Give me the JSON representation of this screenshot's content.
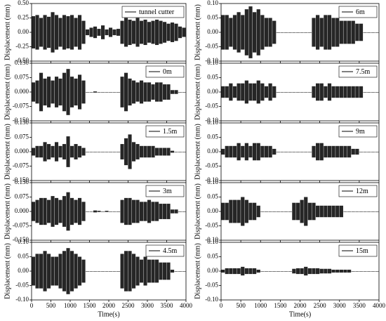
{
  "chart_data": [
    {
      "type": "envelope",
      "ylabel": "Displacement (mm)",
      "xlim": [
        0,
        4000
      ],
      "ylim": [
        -0.5,
        0.5
      ],
      "yticks": [
        {
          "value": 0.5,
          "label": "0.50"
        },
        0.25,
        {
          "value": 0,
          "label": "0.00"
        },
        -0.25,
        {
          "value": -0.5,
          "label": "-0.50"
        }
      ],
      "x": [
        0,
        100,
        200,
        300,
        400,
        500,
        600,
        700,
        800,
        900,
        1000,
        1100,
        1200,
        1300,
        1400,
        1500,
        1600,
        1700,
        1800,
        1900,
        2000,
        2100,
        2200,
        2300,
        2400,
        2500,
        2600,
        2700,
        2800,
        2900,
        3000,
        3100,
        3200,
        3300,
        3400,
        3500,
        3600,
        3700,
        3800,
        3900
      ],
      "series": [
        {
          "name": "tunnel cutter",
          "color": "#000000",
          "values": [
            0.28,
            0.3,
            0.25,
            0.3,
            0.27,
            0.35,
            0.3,
            0.25,
            0.3,
            0.28,
            0.3,
            0.25,
            0.3,
            0.2,
            0.05,
            0.08,
            0.1,
            0.06,
            0.12,
            0.05,
            0.08,
            0.05,
            0.06,
            0.2,
            0.25,
            0.22,
            0.2,
            0.25,
            0.2,
            0.22,
            0.18,
            0.2,
            0.22,
            0.2,
            0.18,
            0.15,
            0.17,
            0.15,
            0.1,
            0.08
          ]
        }
      ]
    },
    {
      "type": "envelope",
      "ylabel": "Displacement (mm)",
      "xlim": [
        0,
        4000
      ],
      "ylim": [
        -0.15,
        0.15
      ],
      "yticks": [
        {
          "value": 0.15,
          "label": "0.150"
        },
        0.075,
        {
          "value": 0,
          "label": "0.000"
        },
        -0.075,
        {
          "value": -0.15,
          "label": "-0.150"
        }
      ],
      "x": [
        0,
        100,
        200,
        300,
        400,
        500,
        600,
        700,
        800,
        900,
        1000,
        1100,
        1200,
        1300,
        1400,
        1500,
        1600,
        1700,
        1800,
        1900,
        2000,
        2100,
        2200,
        2300,
        2400,
        2500,
        2600,
        2700,
        2800,
        2900,
        3000,
        3100,
        3200,
        3300,
        3400,
        3500,
        3600,
        3700,
        3800,
        3900
      ],
      "series": [
        {
          "name": "0m",
          "color": "#000000",
          "values": [
            0.05,
            0.06,
            0.1,
            0.07,
            0.08,
            0.06,
            0.08,
            0.07,
            0.1,
            0.12,
            0.08,
            0.07,
            0.09,
            0.06,
            0,
            0,
            0.003,
            0,
            0,
            0,
            0,
            0,
            0,
            0.08,
            0.1,
            0.07,
            0.06,
            0.05,
            0.06,
            0.05,
            0.05,
            0.04,
            0.05,
            0.05,
            0.04,
            0.04,
            0.01,
            0.01,
            0,
            0
          ]
        }
      ]
    },
    {
      "type": "envelope",
      "ylabel": "Displacement (mm)",
      "xlim": [
        0,
        4000
      ],
      "ylim": [
        -0.15,
        0.15
      ],
      "yticks": [
        {
          "value": 0.15,
          "label": "0.150"
        },
        0.075,
        {
          "value": 0,
          "label": "0.000"
        },
        -0.075,
        {
          "value": -0.15,
          "label": "-0.150"
        }
      ],
      "x": [
        0,
        100,
        200,
        300,
        400,
        500,
        600,
        700,
        800,
        900,
        1000,
        1100,
        1200,
        1300,
        1400,
        1500,
        1600,
        1700,
        1800,
        1900,
        2000,
        2100,
        2200,
        2300,
        2400,
        2500,
        2600,
        2700,
        2800,
        2900,
        3000,
        3100,
        3200,
        3300,
        3400,
        3500,
        3600,
        3700,
        3800,
        3900
      ],
      "series": [
        {
          "name": "1.5m",
          "color": "#000000",
          "values": [
            0.02,
            0.03,
            0.03,
            0.05,
            0.04,
            0.03,
            0.05,
            0.03,
            0.04,
            0.08,
            0.03,
            0.04,
            0.03,
            0.02,
            0,
            0,
            0,
            0,
            0,
            0,
            0,
            0,
            0,
            0.04,
            0.07,
            0.09,
            0.05,
            0.04,
            0.03,
            0.03,
            0.03,
            0.03,
            0.02,
            0.02,
            0.02,
            0.02,
            0.005,
            0,
            0,
            0
          ]
        }
      ]
    },
    {
      "type": "envelope",
      "ylabel": "Displacement (mm)",
      "xlim": [
        0,
        4000
      ],
      "ylim": [
        -0.15,
        0.15
      ],
      "yticks": [
        {
          "value": 0.15,
          "label": "0.150"
        },
        0.075,
        {
          "value": 0,
          "label": "0.000"
        },
        -0.075,
        {
          "value": -0.15,
          "label": "-0.150"
        }
      ],
      "x": [
        0,
        100,
        200,
        300,
        400,
        500,
        600,
        700,
        800,
        900,
        1000,
        1100,
        1200,
        1300,
        1400,
        1500,
        1600,
        1700,
        1800,
        1900,
        2000,
        2100,
        2200,
        2300,
        2400,
        2500,
        2600,
        2700,
        2800,
        2900,
        3000,
        3100,
        3200,
        3300,
        3400,
        3500,
        3600,
        3700,
        3800,
        3900
      ],
      "series": [
        {
          "name": "3m",
          "color": "#000000",
          "values": [
            0.05,
            0.06,
            0.07,
            0.07,
            0.06,
            0.08,
            0.07,
            0.06,
            0.08,
            0.1,
            0.07,
            0.06,
            0.07,
            0.05,
            0,
            0,
            0.005,
            0.003,
            0,
            0.003,
            0,
            0,
            0,
            0.06,
            0.07,
            0.07,
            0.06,
            0.06,
            0.05,
            0.05,
            0.06,
            0.05,
            0.05,
            0.04,
            0.04,
            0.04,
            0.01,
            0.01,
            0,
            0
          ]
        }
      ]
    },
    {
      "type": "envelope",
      "ylabel": "Displacement (mm)",
      "xlabel": "Time(s)",
      "xlim": [
        0,
        4000
      ],
      "xticks": [
        0,
        500,
        1000,
        1500,
        2000,
        2500,
        3000,
        3500,
        4000
      ],
      "ylim": [
        -0.1,
        0.1
      ],
      "yticks": [
        {
          "value": 0.1,
          "label": "0.10"
        },
        0.05,
        {
          "value": 0,
          "label": "0.00"
        },
        -0.05,
        {
          "value": -0.1,
          "label": "-0.10"
        }
      ],
      "x": [
        0,
        100,
        200,
        300,
        400,
        500,
        600,
        700,
        800,
        900,
        1000,
        1100,
        1200,
        1300,
        1400,
        1500,
        1600,
        1700,
        1800,
        1900,
        2000,
        2100,
        2200,
        2300,
        2400,
        2500,
        2600,
        2700,
        2800,
        2900,
        3000,
        3100,
        3200,
        3300,
        3400,
        3500,
        3600,
        3700,
        3800,
        3900
      ],
      "series": [
        {
          "name": "4.5m",
          "color": "#000000",
          "values": [
            0.05,
            0.06,
            0.06,
            0.07,
            0.06,
            0.05,
            0.05,
            0.06,
            0.07,
            0.08,
            0.07,
            0.06,
            0.05,
            0.04,
            0,
            0,
            0,
            0,
            0,
            0,
            0,
            0,
            0,
            0.06,
            0.07,
            0.07,
            0.06,
            0.05,
            0.04,
            0.05,
            0.04,
            0.04,
            0.04,
            0.03,
            0.03,
            0.03,
            0.005,
            0,
            0,
            0
          ]
        }
      ]
    },
    {
      "type": "envelope",
      "ylabel": "Displacement (mm)",
      "xlim": [
        0,
        4000
      ],
      "ylim": [
        -0.1,
        0.1
      ],
      "yticks": [
        {
          "value": 0.1,
          "label": "0.10"
        },
        0.05,
        {
          "value": 0,
          "label": "0.00"
        },
        -0.05,
        {
          "value": -0.1,
          "label": "-0.10"
        }
      ],
      "x": [
        0,
        100,
        200,
        300,
        400,
        500,
        600,
        700,
        800,
        900,
        1000,
        1100,
        1200,
        1300,
        1400,
        1500,
        1600,
        1700,
        1800,
        1900,
        2000,
        2100,
        2200,
        2300,
        2400,
        2500,
        2600,
        2700,
        2800,
        2900,
        3000,
        3100,
        3200,
        3300,
        3400,
        3500,
        3600,
        3700,
        3800,
        3900
      ],
      "series": [
        {
          "name": "6m",
          "color": "#000000",
          "values": [
            0.06,
            0.06,
            0.05,
            0.06,
            0.07,
            0.06,
            0.08,
            0.09,
            0.07,
            0.08,
            0.06,
            0.05,
            0.05,
            0.04,
            0,
            0,
            0,
            0,
            0,
            0,
            0,
            0,
            0,
            0.05,
            0.06,
            0.05,
            0.06,
            0.06,
            0.05,
            0.05,
            0.04,
            0.04,
            0.04,
            0.04,
            0.03,
            0.03,
            0,
            0,
            0,
            0
          ]
        }
      ]
    },
    {
      "type": "envelope",
      "ylabel": "Displacement (mm)",
      "xlim": [
        0,
        4000
      ],
      "ylim": [
        -0.1,
        0.1
      ],
      "yticks": [
        {
          "value": 0.1,
          "label": "0.10"
        },
        0.05,
        {
          "value": 0,
          "label": "0.00"
        },
        -0.05,
        {
          "value": -0.1,
          "label": "-0.10"
        }
      ],
      "x": [
        0,
        100,
        200,
        300,
        400,
        500,
        600,
        700,
        800,
        900,
        1000,
        1100,
        1200,
        1300,
        1400,
        1500,
        1600,
        1700,
        1800,
        1900,
        2000,
        2100,
        2200,
        2300,
        2400,
        2500,
        2600,
        2700,
        2800,
        2900,
        3000,
        3100,
        3200,
        3300,
        3400,
        3500,
        3600,
        3700,
        3800,
        3900
      ],
      "series": [
        {
          "name": "7.5m",
          "color": "#000000",
          "values": [
            0.02,
            0.02,
            0.03,
            0.02,
            0.03,
            0.03,
            0.04,
            0.03,
            0.03,
            0.04,
            0.03,
            0.02,
            0.03,
            0.02,
            0,
            0,
            0,
            0,
            0,
            0,
            0,
            0,
            0,
            0.02,
            0.03,
            0.03,
            0.02,
            0.03,
            0.02,
            0.02,
            0.02,
            0.02,
            0.02,
            0.02,
            0.02,
            0.02,
            0,
            0,
            0,
            0
          ]
        }
      ]
    },
    {
      "type": "envelope",
      "ylabel": "Displacement (mm)",
      "xlim": [
        0,
        4000
      ],
      "ylim": [
        -0.1,
        0.1
      ],
      "yticks": [
        {
          "value": 0.1,
          "label": "0.10"
        },
        0.05,
        {
          "value": 0,
          "label": "0.00"
        },
        -0.05,
        {
          "value": -0.1,
          "label": "-0.10"
        }
      ],
      "x": [
        0,
        100,
        200,
        300,
        400,
        500,
        600,
        700,
        800,
        900,
        1000,
        1100,
        1200,
        1300,
        1400,
        1500,
        1600,
        1700,
        1800,
        1900,
        2000,
        2100,
        2200,
        2300,
        2400,
        2500,
        2600,
        2700,
        2800,
        2900,
        3000,
        3100,
        3200,
        3300,
        3400,
        3500,
        3600,
        3700,
        3800,
        3900
      ],
      "series": [
        {
          "name": "9m",
          "color": "#000000",
          "values": [
            0.01,
            0.02,
            0.02,
            0.02,
            0.03,
            0.02,
            0.03,
            0.02,
            0.03,
            0.03,
            0.02,
            0.02,
            0.02,
            0.01,
            0,
            0,
            0,
            0,
            0,
            0,
            0,
            0,
            0,
            0.02,
            0.03,
            0.03,
            0.02,
            0.02,
            0.02,
            0.02,
            0.02,
            0.02,
            0.02,
            0.01,
            0.01,
            0,
            0,
            0,
            0,
            0
          ]
        }
      ]
    },
    {
      "type": "envelope",
      "ylabel": "Displacement (mm)",
      "xlim": [
        0,
        4000
      ],
      "ylim": [
        -0.1,
        0.1
      ],
      "yticks": [
        {
          "value": 0.1,
          "label": "0.10"
        },
        0.05,
        {
          "value": 0,
          "label": "0.00"
        },
        -0.05,
        {
          "value": -0.1,
          "label": "-0.10"
        }
      ],
      "x": [
        0,
        100,
        200,
        300,
        400,
        500,
        600,
        700,
        800,
        900,
        1000,
        1100,
        1200,
        1300,
        1400,
        1500,
        1600,
        1700,
        1800,
        1900,
        2000,
        2100,
        2200,
        2300,
        2400,
        2500,
        2600,
        2700,
        2800,
        2900,
        3000,
        3100,
        3200,
        3300,
        3400,
        3500,
        3600,
        3700,
        3800,
        3900
      ],
      "series": [
        {
          "name": "12m",
          "color": "#000000",
          "values": [
            0.03,
            0.03,
            0.04,
            0.04,
            0.04,
            0.05,
            0.04,
            0.03,
            0.03,
            0.02,
            0,
            0,
            0,
            0,
            0,
            0,
            0,
            0,
            0.03,
            0.03,
            0.04,
            0.05,
            0.03,
            0.03,
            0.02,
            0.02,
            0.02,
            0.02,
            0.02,
            0.02,
            0.02,
            0,
            0,
            0,
            0,
            0,
            0,
            0,
            0,
            0
          ]
        }
      ]
    },
    {
      "type": "envelope",
      "ylabel": "Displacement (mm)",
      "xlabel": "Time(s)",
      "xlim": [
        0,
        4000
      ],
      "xticks": [
        0,
        500,
        1000,
        1500,
        2000,
        2500,
        3000,
        3500,
        4000
      ],
      "ylim": [
        -0.1,
        0.1
      ],
      "yticks": [
        {
          "value": 0.1,
          "label": "0.10"
        },
        0.05,
        {
          "value": 0,
          "label": "0.00"
        },
        -0.05,
        {
          "value": -0.1,
          "label": "-0.10"
        }
      ],
      "x": [
        0,
        100,
        200,
        300,
        400,
        500,
        600,
        700,
        800,
        900,
        1000,
        1100,
        1200,
        1300,
        1400,
        1500,
        1600,
        1700,
        1800,
        1900,
        2000,
        2100,
        2200,
        2300,
        2400,
        2500,
        2600,
        2700,
        2800,
        2900,
        3000,
        3100,
        3200,
        3300,
        3400,
        3500,
        3600,
        3700,
        3800,
        3900
      ],
      "series": [
        {
          "name": "15m",
          "color": "#000000",
          "values": [
            0.005,
            0.01,
            0.01,
            0.01,
            0.01,
            0.015,
            0.01,
            0.01,
            0.01,
            0.005,
            0,
            0,
            0,
            0,
            0,
            0,
            0,
            0,
            0.008,
            0.01,
            0.01,
            0.015,
            0.01,
            0.01,
            0.01,
            0.008,
            0.008,
            0.008,
            0.005,
            0.005,
            0.005,
            0.005,
            0.005,
            0,
            0,
            0,
            0,
            0,
            0,
            0
          ]
        }
      ]
    }
  ]
}
